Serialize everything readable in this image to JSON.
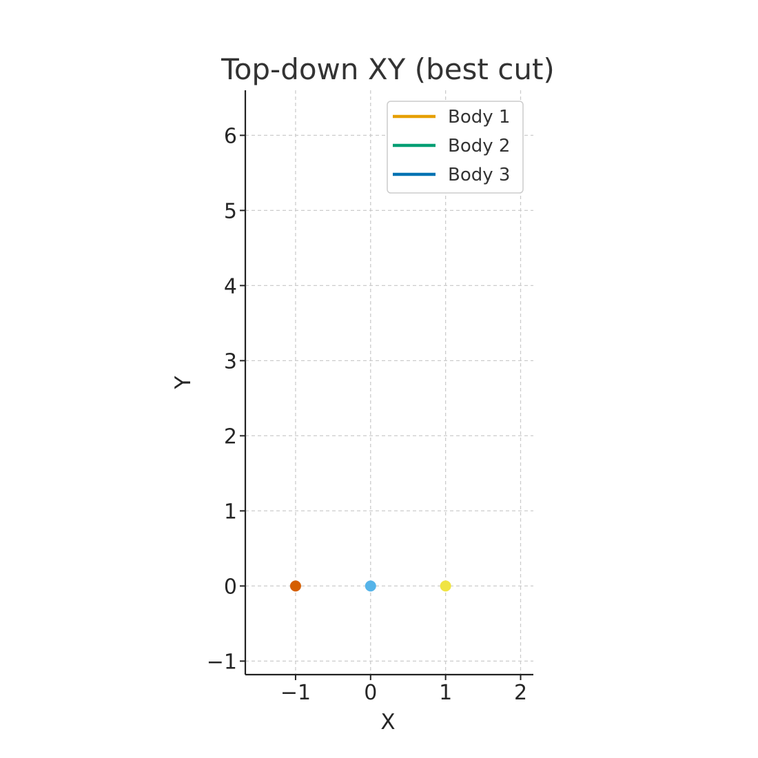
{
  "chart_data": {
    "type": "scatter",
    "title": "Top-down XY (best cut)",
    "xlabel": "X",
    "ylabel": "Y",
    "xlim": [
      -1.67,
      2.17
    ],
    "ylim": [
      -1.18,
      6.6
    ],
    "xticks": [
      -1,
      0,
      1,
      2
    ],
    "yticks": [
      -1,
      0,
      1,
      2,
      3,
      4,
      5,
      6
    ],
    "xtick_labels": [
      "−1",
      "0",
      "1",
      "2"
    ],
    "ytick_labels": [
      "−1",
      "0",
      "1",
      "2",
      "3",
      "4",
      "5",
      "6"
    ],
    "grid": true,
    "legend_position": "top-right",
    "series": [
      {
        "name": "Body 1",
        "legend_color": "#E69F00",
        "x": [],
        "y": []
      },
      {
        "name": "Body 2",
        "legend_color": "#009E73",
        "x": [],
        "y": []
      },
      {
        "name": "Body 3",
        "legend_color": "#0072B2",
        "x": [],
        "y": []
      }
    ],
    "points": [
      {
        "x": -1,
        "y": 0,
        "color": "#D55E00"
      },
      {
        "x": 0,
        "y": 0,
        "color": "#56B4E9"
      },
      {
        "x": 1,
        "y": 0,
        "color": "#F0E442"
      }
    ]
  }
}
